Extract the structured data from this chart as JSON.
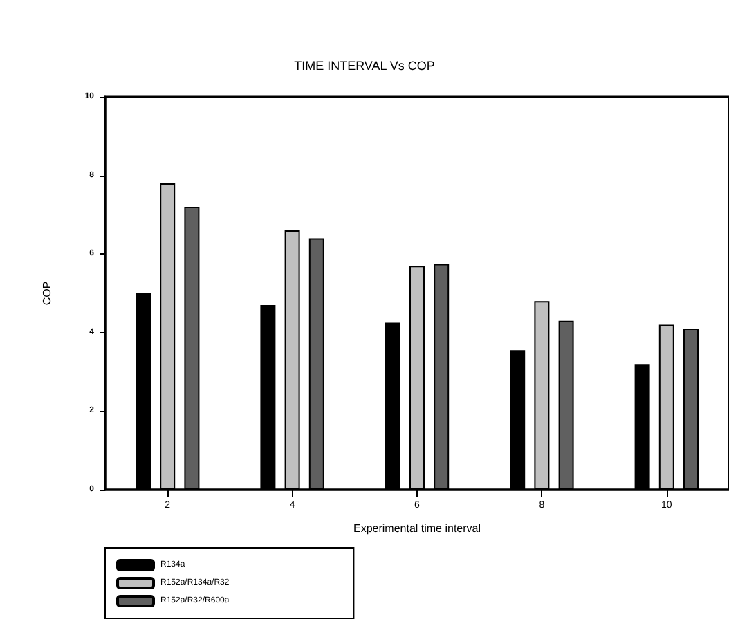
{
  "chart_data": {
    "type": "bar",
    "title": "TIME INTERVAL Vs COP",
    "xlabel": "Experimental time interval",
    "ylabel": "COP",
    "categories": [
      "2",
      "4",
      "6",
      "8",
      "10"
    ],
    "series": [
      {
        "name": "R134a",
        "color": "#000000",
        "values": [
          5.0,
          4.7,
          4.25,
          3.55,
          3.2
        ]
      },
      {
        "name": "R152a/R134a/R32",
        "color": "#c0c0c0",
        "values": [
          7.8,
          6.6,
          5.7,
          4.8,
          4.2
        ]
      },
      {
        "name": "R152a/R32/R600a",
        "color": "#606060",
        "values": [
          7.2,
          6.4,
          5.75,
          4.3,
          4.1
        ]
      }
    ],
    "ylim": [
      0,
      10
    ],
    "yticks": [
      0,
      2,
      4,
      6,
      8,
      10
    ],
    "grid": false,
    "legend": "bottom left"
  }
}
